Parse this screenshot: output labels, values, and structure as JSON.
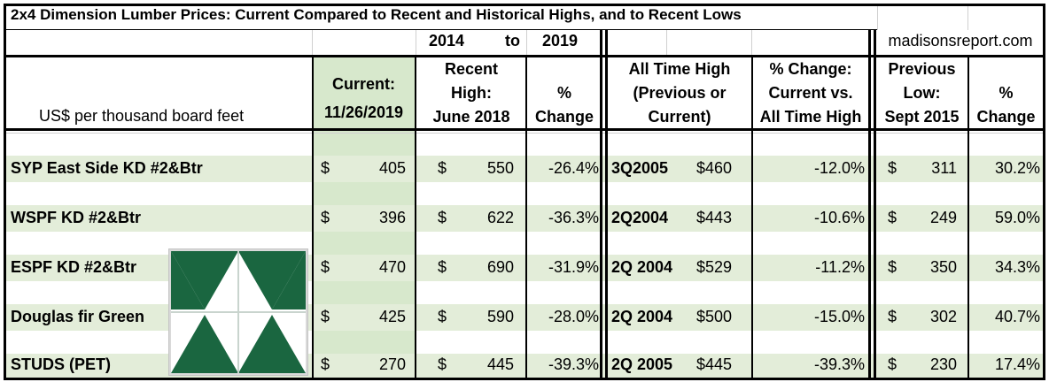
{
  "title": "2x4 Dimension Lumber Prices: Current Compared to Recent and Historical Highs, and to Recent Lows",
  "year_range": {
    "from": "2014",
    "to_label": "to",
    "to": "2019"
  },
  "site": "madisonsreport.com",
  "headers": {
    "units": "US$ per thousand board feet",
    "current_line1": "Current:",
    "current_line2": "11/26/2019",
    "recent_high_line1": "Recent",
    "recent_high_line2": "High:",
    "recent_high_line3": "June 2018",
    "pct1_line1": "%",
    "pct1_line2": "Change",
    "ath_line1": "All Time High",
    "ath_line2": "(Previous or",
    "ath_line3": "Current)",
    "pct_ath_line1": "% Change:",
    "pct_ath_line2": "Current vs.",
    "pct_ath_line3": "All Time High",
    "prev_low_line1": "Previous",
    "prev_low_line2": "Low:",
    "prev_low_line3": "Sept 2015",
    "pct2_line1": "%",
    "pct2_line2": "Change"
  },
  "currency_symbol": "$",
  "rows": [
    {
      "product": "SYP East Side KD #2&Btr",
      "current": "405",
      "recent_high": "550",
      "pct_recent": "-26.4%",
      "ath_period": "3Q2005",
      "ath_price": "$460",
      "pct_ath": "-12.0%",
      "prev_low": "311",
      "pct_low": "30.2%"
    },
    {
      "product": "WSPF KD #2&Btr",
      "current": "396",
      "recent_high": "622",
      "pct_recent": "-36.3%",
      "ath_period": "2Q2004",
      "ath_price": "$443",
      "pct_ath": "-10.6%",
      "prev_low": "249",
      "pct_low": "59.0%"
    },
    {
      "product": "ESPF KD #2&Btr",
      "current": "470",
      "recent_high": "690",
      "pct_recent": "-31.9%",
      "ath_period": "2Q 2004",
      "ath_price": "$529",
      "pct_ath": "-11.2%",
      "prev_low": "350",
      "pct_low": "34.3%"
    },
    {
      "product": "Douglas fir Green",
      "current": "425",
      "recent_high": "590",
      "pct_recent": "-28.0%",
      "ath_period": "2Q 2004",
      "ath_price": "$500",
      "pct_ath": "-15.0%",
      "prev_low": "302",
      "pct_low": "40.7%"
    },
    {
      "product": "STUDS (PET)",
      "current": "270",
      "recent_high": "445",
      "pct_recent": "-39.3%",
      "ath_period": "2Q 2005",
      "ath_price": "$445",
      "pct_ath": "-39.3%",
      "prev_low": "230",
      "pct_low": "17.4%"
    }
  ],
  "colors": {
    "band_green": "#e3edd9",
    "logo_green": "#1a6640",
    "highlight_column": "#d7e8cc"
  }
}
